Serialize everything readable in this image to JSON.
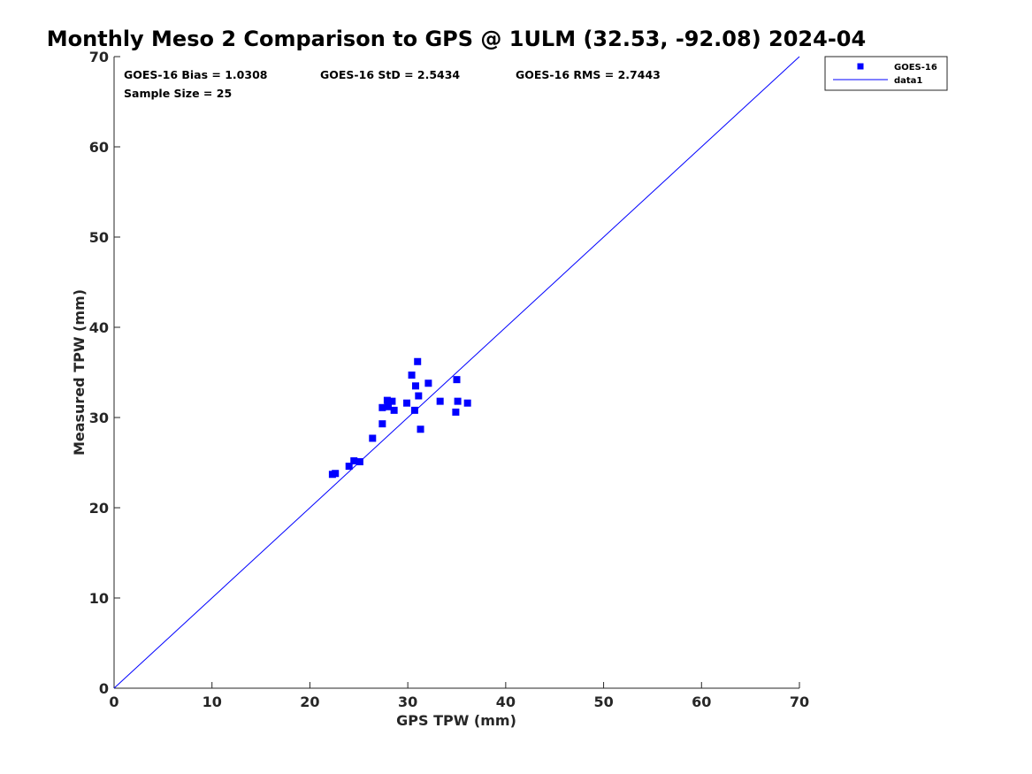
{
  "chart_data": {
    "type": "scatter",
    "title": "Monthly Meso 2 Comparison to GPS @ 1ULM (32.53, -92.08) 2024-04",
    "xlabel": "GPS TPW (mm)",
    "ylabel": "Measured TPW (mm)",
    "xlim": [
      0,
      70
    ],
    "ylim": [
      0,
      70
    ],
    "xticks": [
      "0",
      "10",
      "20",
      "30",
      "40",
      "50",
      "60",
      "70"
    ],
    "yticks": [
      "0",
      "10",
      "20",
      "30",
      "40",
      "50",
      "60",
      "70"
    ],
    "grid": false,
    "legend_position": "top-right, outside plot",
    "annotations": {
      "bias": "GOES-16 Bias = 1.0308",
      "std": "GOES-16 StD = 2.5434",
      "rms": "GOES-16 RMS = 2.7443",
      "sample_size": "Sample Size = 25"
    },
    "series": [
      {
        "name": "GOES-16",
        "marker": "square",
        "color": "#0000ff",
        "points": [
          [
            22.3,
            23.7
          ],
          [
            22.6,
            23.8
          ],
          [
            24.0,
            24.6
          ],
          [
            24.5,
            25.2
          ],
          [
            25.1,
            25.1
          ],
          [
            26.4,
            27.7
          ],
          [
            27.4,
            29.3
          ],
          [
            27.4,
            31.1
          ],
          [
            27.9,
            31.9
          ],
          [
            28.0,
            31.2
          ],
          [
            28.4,
            31.8
          ],
          [
            28.6,
            30.8
          ],
          [
            29.9,
            31.6
          ],
          [
            30.4,
            34.7
          ],
          [
            30.7,
            30.8
          ],
          [
            30.8,
            33.5
          ],
          [
            31.0,
            36.2
          ],
          [
            31.1,
            32.4
          ],
          [
            31.3,
            28.7
          ],
          [
            32.1,
            33.8
          ],
          [
            33.3,
            31.8
          ],
          [
            34.9,
            30.6
          ],
          [
            35.0,
            34.2
          ],
          [
            35.1,
            31.8
          ],
          [
            36.1,
            31.6
          ]
        ]
      },
      {
        "name": "data1",
        "type": "line",
        "color": "#0000ff",
        "points": [
          [
            0,
            0
          ],
          [
            70,
            70
          ]
        ]
      }
    ]
  }
}
